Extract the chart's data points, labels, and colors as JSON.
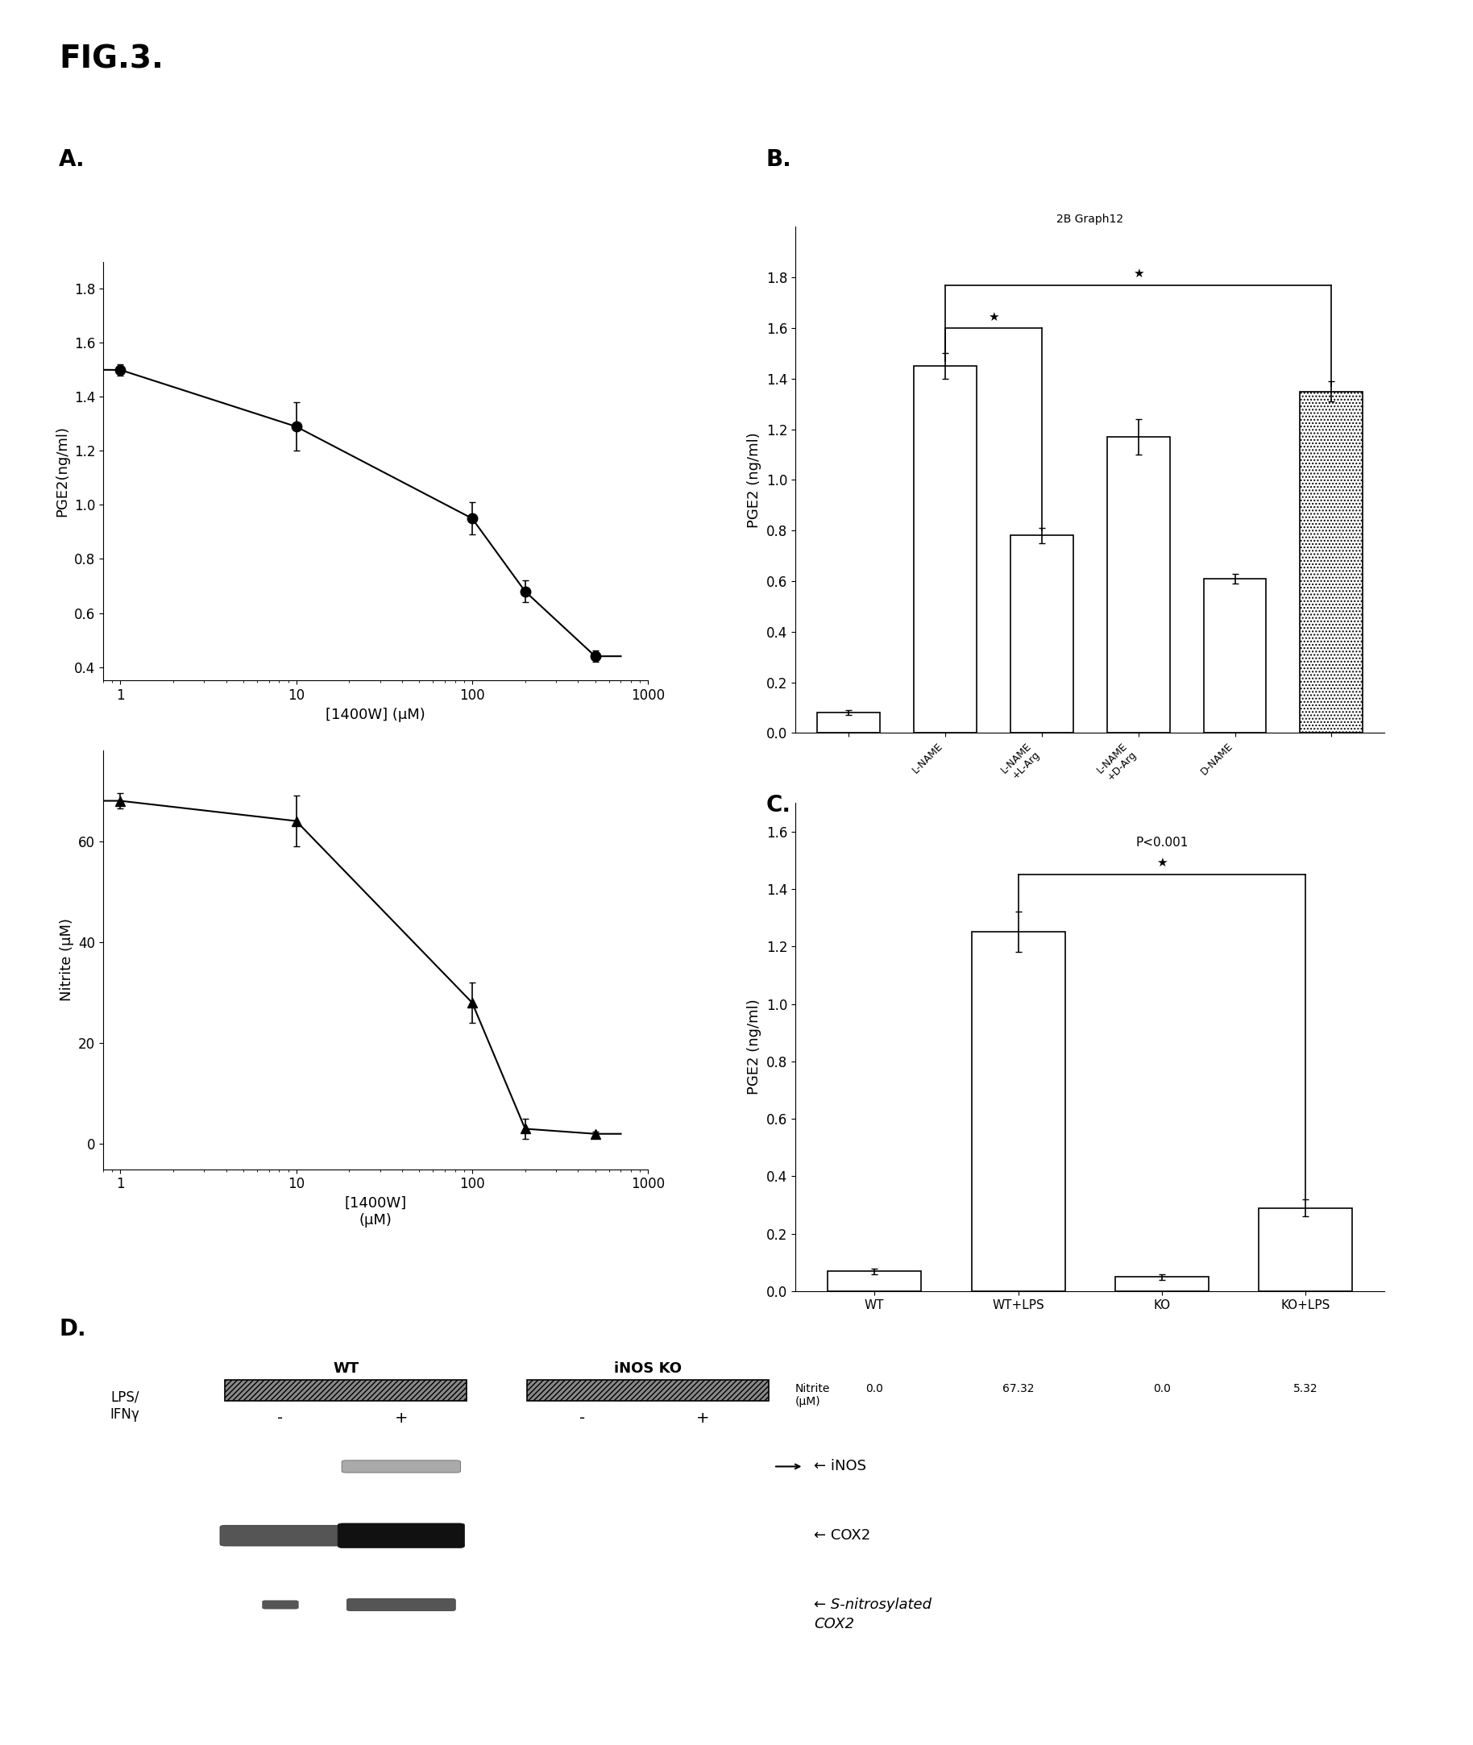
{
  "fig_label": "FIG.3.",
  "panel_A_label": "A.",
  "panel_B_label": "B.",
  "panel_C_label": "C.",
  "panel_D_label": "D.",
  "pge2_x": [
    1,
    10,
    100,
    200,
    500
  ],
  "pge2_y": [
    1.5,
    1.29,
    0.95,
    0.68,
    0.44
  ],
  "pge2_yerr": [
    0.02,
    0.09,
    0.06,
    0.04,
    0.02
  ],
  "pge2_xlabel": "[1400W] (μM)",
  "pge2_ylabel": "PGE2(ng/ml)",
  "pge2_ylim": [
    0.35,
    1.9
  ],
  "pge2_yticks": [
    0.4,
    0.6,
    0.8,
    1.0,
    1.2,
    1.4,
    1.6,
    1.8
  ],
  "nitrite_x": [
    1,
    10,
    100,
    200,
    500
  ],
  "nitrite_y": [
    68,
    64,
    28,
    3,
    2
  ],
  "nitrite_yerr": [
    1.5,
    5,
    4,
    2,
    0.5
  ],
  "nitrite_xlabel_line1": "[1400W]",
  "nitrite_xlabel_line2": "(μM)",
  "nitrite_ylabel": "Nitrite (μM)",
  "nitrite_ylim": [
    -5,
    78
  ],
  "nitrite_yticks": [
    0,
    20,
    40,
    60
  ],
  "bar_B_values": [
    0.08,
    1.45,
    0.78,
    1.17,
    0.61,
    1.35
  ],
  "bar_B_errors": [
    0.01,
    0.05,
    0.03,
    0.07,
    0.02,
    0.04
  ],
  "bar_B_xlabels": [
    "",
    "L-NAME",
    "L-NAME\n+L-Arg",
    "L-NAME\n+D-Arg",
    "D-NAME",
    ""
  ],
  "bar_B_xlabel": "LPS/IFNγ",
  "bar_B_ylabel": "PGE2 (ng/ml)",
  "bar_B_ylim": [
    0,
    2.0
  ],
  "bar_B_yticks": [
    0.0,
    0.2,
    0.4,
    0.6,
    0.8,
    1.0,
    1.2,
    1.4,
    1.6,
    1.8
  ],
  "bar_B_title": "2B Graph12",
  "bar_B_dotted_idx": 5,
  "bar_C_categories": [
    "WT",
    "WT+LPS",
    "KO",
    "KO+LPS"
  ],
  "bar_C_values": [
    0.07,
    1.25,
    0.05,
    0.29
  ],
  "bar_C_errors": [
    0.01,
    0.07,
    0.01,
    0.03
  ],
  "bar_C_ylabel": "PGE2 (ng/ml)",
  "bar_C_ylim": [
    0,
    1.7
  ],
  "bar_C_yticks": [
    0.0,
    0.2,
    0.4,
    0.6,
    0.8,
    1.0,
    1.2,
    1.4,
    1.6
  ],
  "bar_C_nitrite_labels": [
    "0.0",
    "67.32",
    "0.0",
    "5.32"
  ],
  "bar_C_pval": "P<0.001",
  "wt_label": "WT",
  "inos_ko_label": "iNOS KO",
  "band_labels": [
    "iNOS",
    "COX2",
    "S-nitrosylated\nCOX2"
  ],
  "font_size_figlabel": 28,
  "font_size_panel": 20,
  "font_size_axis": 13,
  "font_size_tick": 12
}
